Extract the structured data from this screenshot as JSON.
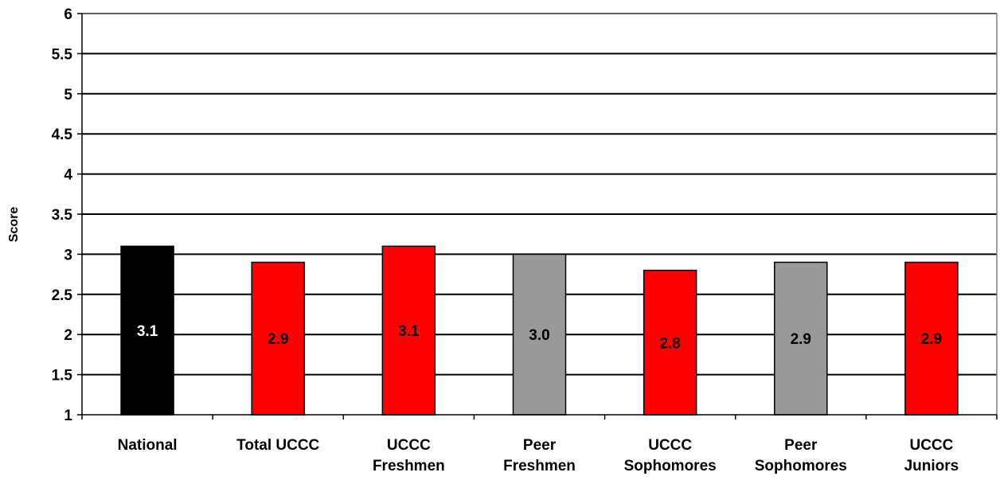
{
  "chart_data": {
    "type": "bar",
    "categories": [
      [
        "National"
      ],
      [
        "Total UCCC"
      ],
      [
        "UCCC",
        "Freshmen"
      ],
      [
        "Peer",
        "Freshmen"
      ],
      [
        "UCCC",
        "Sophomores"
      ],
      [
        "Peer",
        "Sophomores"
      ],
      [
        "UCCC",
        "Juniors"
      ]
    ],
    "values": [
      3.1,
      2.9,
      3.1,
      3.0,
      2.8,
      2.9,
      2.9
    ],
    "data_labels": [
      "3.1",
      "2.9",
      "3.1",
      "3.0",
      "2.8",
      "2.9",
      "2.9"
    ],
    "bar_colors": [
      "#000000",
      "#ff0000",
      "#ff0000",
      "#999999",
      "#ff0000",
      "#999999",
      "#ff0000"
    ],
    "label_colors": [
      "#ffffff",
      "#000000",
      "#000000",
      "#000000",
      "#000000",
      "#000000",
      "#000000"
    ],
    "ylabel": "Score",
    "ylim": [
      1,
      6
    ],
    "yticks": [
      "1",
      "1.5",
      "2",
      "2.5",
      "3",
      "3.5",
      "4",
      "4.5",
      "5",
      "5.5",
      "6"
    ],
    "grid": true,
    "legend": "none"
  }
}
